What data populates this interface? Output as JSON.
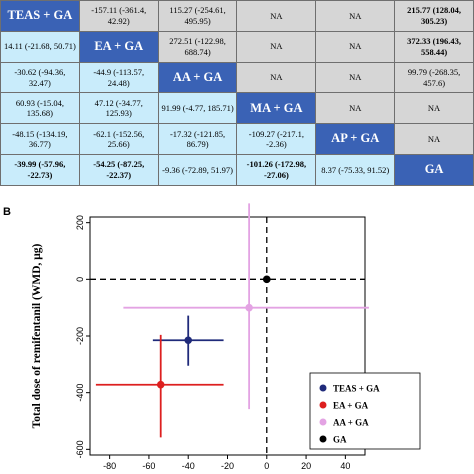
{
  "league_table": {
    "rows": [
      [
        {
          "text": "TEAS + GA",
          "style": "diag"
        },
        {
          "text": "-157.11 (-361.4, 42.92)",
          "style": "gray"
        },
        {
          "text": "115.27 (-254.61, 495.95)",
          "style": "gray"
        },
        {
          "text": "NA",
          "style": "gray"
        },
        {
          "text": "NA",
          "style": "gray"
        },
        {
          "text": "215.77 (128.04, 305.23)",
          "style": "gray b"
        }
      ],
      [
        {
          "text": "14.11 (-21.68, 50.71)",
          "style": "light"
        },
        {
          "text": "EA + GA",
          "style": "diag"
        },
        {
          "text": "272.51 (-122.98, 688.74)",
          "style": "gray"
        },
        {
          "text": "NA",
          "style": "gray"
        },
        {
          "text": "NA",
          "style": "gray"
        },
        {
          "text": "372.33 (196.43, 558.44)",
          "style": "gray b"
        }
      ],
      [
        {
          "text": "-30.62 (-94.36, 32.47)",
          "style": "light"
        },
        {
          "text": "-44.9 (-113.57, 24.48)",
          "style": "light"
        },
        {
          "text": "AA + GA",
          "style": "diag"
        },
        {
          "text": "NA",
          "style": "gray"
        },
        {
          "text": "NA",
          "style": "gray"
        },
        {
          "text": "99.79 (-268.35, 457.6)",
          "style": "gray"
        }
      ],
      [
        {
          "text": "60.93 (-15.04, 135.68)",
          "style": "light"
        },
        {
          "text": "47.12 (-34.77, 125.93)",
          "style": "light"
        },
        {
          "text": "91.99 (-4.77, 185.71)",
          "style": "light"
        },
        {
          "text": "MA + GA",
          "style": "diag"
        },
        {
          "text": "NA",
          "style": "gray"
        },
        {
          "text": "NA",
          "style": "gray"
        }
      ],
      [
        {
          "text": "-48.15 (-134.19, 36.77)",
          "style": "light"
        },
        {
          "text": "-62.1 (-152.56, 25.66)",
          "style": "light"
        },
        {
          "text": "-17.32 (-121.85, 86.79)",
          "style": "light"
        },
        {
          "text": "-109.27 (-217.1, -2.36)",
          "style": "light"
        },
        {
          "text": "AP + GA",
          "style": "diag"
        },
        {
          "text": "NA",
          "style": "gray"
        }
      ],
      [
        {
          "text": "-39.99 (-57.96, -22.73)",
          "style": "light b"
        },
        {
          "text": "-54.25 (-87.25, -22.37)",
          "style": "light b"
        },
        {
          "text": "-9.36 (-72.89, 51.97)",
          "style": "light"
        },
        {
          "text": "-101.26 (-172.98, -27.06)",
          "style": "light b"
        },
        {
          "text": "8.37 (-75.33, 91.52)",
          "style": "light"
        },
        {
          "text": "GA",
          "style": "diag"
        }
      ]
    ]
  },
  "panel_b_label": "B",
  "chart_data": {
    "type": "scatter",
    "ylabel": "Total dose of remifentanil (WMD, μg)",
    "xlabel": "",
    "xlim": [
      -90,
      50
    ],
    "ylim": [
      -620,
      220
    ],
    "xticks": [
      -80,
      -60,
      -40,
      -20,
      0,
      20,
      40
    ],
    "yticks": [
      -600,
      -400,
      -200,
      0,
      200
    ],
    "reference_lines": {
      "x": 0,
      "y": 0,
      "style": "dashed"
    },
    "series": [
      {
        "name": "TEAS + GA",
        "color": "#1f2a7a",
        "x": -40,
        "y": -215,
        "x_ci": [
          -58,
          -22
        ],
        "y_ci": [
          -305,
          -128
        ]
      },
      {
        "name": "EA + GA",
        "color": "#dd1f1f",
        "x": -54,
        "y": -372,
        "x_ci": [
          -87,
          -22
        ],
        "y_ci": [
          -558,
          -196
        ]
      },
      {
        "name": "AA + GA",
        "color": "#e3a3e3",
        "x": -9,
        "y": -100,
        "x_ci": [
          -73,
          52
        ],
        "y_ci": [
          -458,
          268
        ]
      },
      {
        "name": "GA",
        "color": "#000000",
        "x": 0,
        "y": 0,
        "x_ci": null,
        "y_ci": null
      }
    ],
    "legend_position": "bottom-right"
  }
}
